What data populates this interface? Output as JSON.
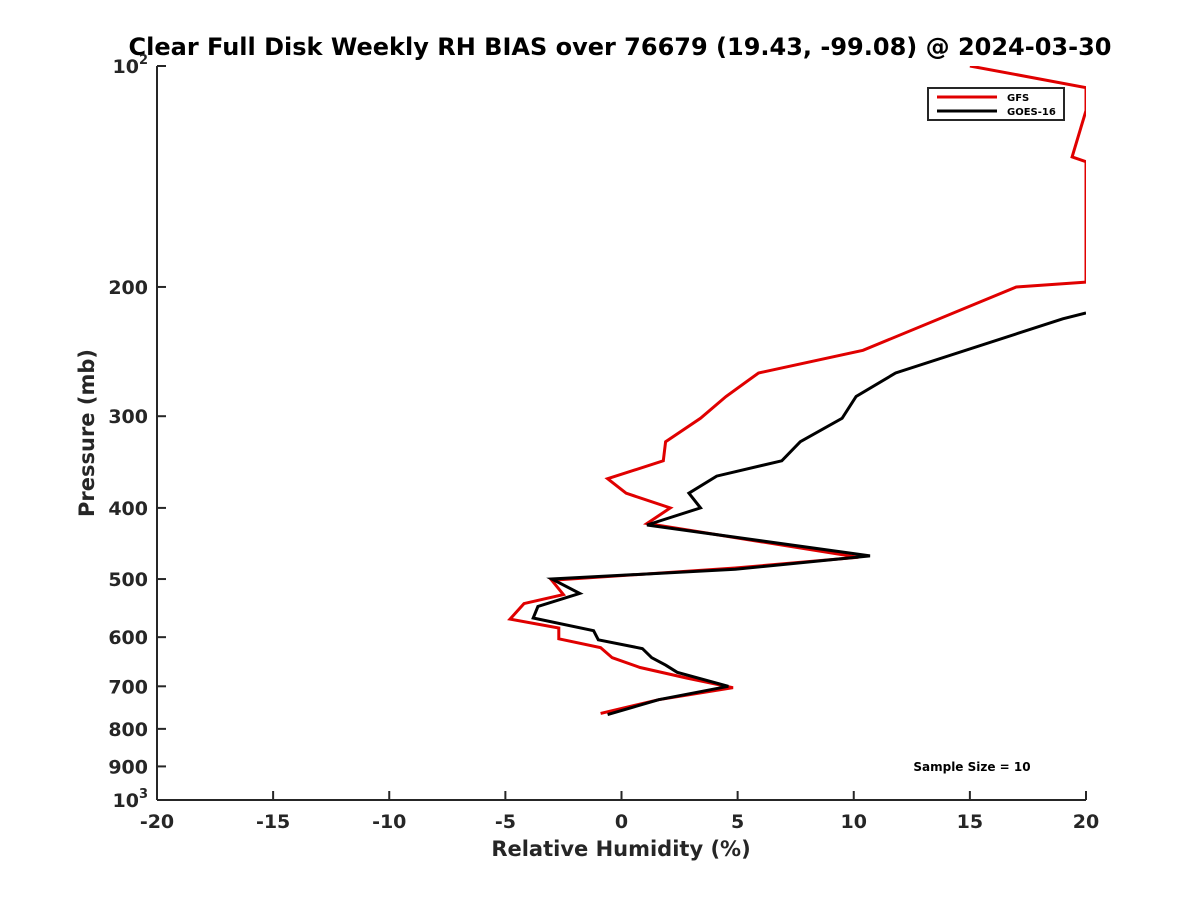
{
  "chart_data": {
    "type": "line",
    "title": "Clear Full Disk Weekly RH BIAS over 76679 (19.43, -99.08) @ 2024-03-30",
    "xlabel": "Relative Humidity (%)",
    "ylabel": "Pressure (mb)",
    "xlim": [
      -20,
      20
    ],
    "ylim": [
      100,
      1000
    ],
    "y_scale": "log",
    "y_reversed": true,
    "grid": false,
    "legend_position": "top-right",
    "x_ticks": [
      "-20",
      "-15",
      "-10",
      "-5",
      "0",
      "5",
      "10",
      "15",
      "20"
    ],
    "y_ticks": [
      {
        "value": 100,
        "base": "10",
        "exp": "2"
      },
      {
        "value": 200,
        "label": "200"
      },
      {
        "value": 300,
        "label": "300"
      },
      {
        "value": 400,
        "label": "400"
      },
      {
        "value": 500,
        "label": "500"
      },
      {
        "value": 600,
        "label": "600"
      },
      {
        "value": 700,
        "label": "700"
      },
      {
        "value": 800,
        "label": "800"
      },
      {
        "value": 900,
        "label": "900"
      },
      {
        "value": 1000,
        "base": "10",
        "exp": "3"
      }
    ],
    "annotation": "Sample Size = 10",
    "series": [
      {
        "name": "GFS",
        "color": "#e00000",
        "points": [
          [
            15.0,
            100
          ],
          [
            20.0,
            107
          ],
          [
            20.0,
            115
          ],
          [
            19.4,
            133
          ],
          [
            20.0,
            135
          ],
          [
            20.0,
            197
          ],
          [
            17.0,
            200
          ],
          [
            10.4,
            244
          ],
          [
            5.9,
            262
          ],
          [
            4.5,
            282
          ],
          [
            3.4,
            302
          ],
          [
            1.9,
            325
          ],
          [
            1.8,
            345
          ],
          [
            -0.6,
            365
          ],
          [
            0.2,
            382
          ],
          [
            2.1,
            400
          ],
          [
            1.1,
            420
          ],
          [
            10.2,
            467
          ],
          [
            4.9,
            483
          ],
          [
            -3.0,
            502
          ],
          [
            -2.5,
            525
          ],
          [
            -4.2,
            540
          ],
          [
            -4.8,
            567
          ],
          [
            -2.7,
            583
          ],
          [
            -2.7,
            603
          ],
          [
            -0.9,
            620
          ],
          [
            -0.4,
            640
          ],
          [
            0.8,
            660
          ],
          [
            2.8,
            682
          ],
          [
            4.8,
            703
          ],
          [
            1.6,
            730
          ],
          [
            -0.9,
            762
          ]
        ]
      },
      {
        "name": "GOES-16",
        "color": "#000000",
        "points": [
          [
            20.0,
            217
          ],
          [
            19.0,
            221
          ],
          [
            11.8,
            262
          ],
          [
            10.1,
            282
          ],
          [
            9.5,
            302
          ],
          [
            7.7,
            325
          ],
          [
            6.9,
            345
          ],
          [
            4.1,
            362
          ],
          [
            2.9,
            382
          ],
          [
            3.4,
            400
          ],
          [
            1.1,
            422
          ],
          [
            10.7,
            465
          ],
          [
            4.9,
            485
          ],
          [
            -3.0,
            500
          ],
          [
            -1.8,
            523
          ],
          [
            -3.6,
            545
          ],
          [
            -3.8,
            565
          ],
          [
            -1.2,
            588
          ],
          [
            -1.0,
            605
          ],
          [
            0.9,
            622
          ],
          [
            1.3,
            640
          ],
          [
            1.9,
            655
          ],
          [
            2.4,
            670
          ],
          [
            4.6,
            700
          ],
          [
            1.6,
            730
          ],
          [
            -0.6,
            765
          ]
        ]
      }
    ]
  }
}
